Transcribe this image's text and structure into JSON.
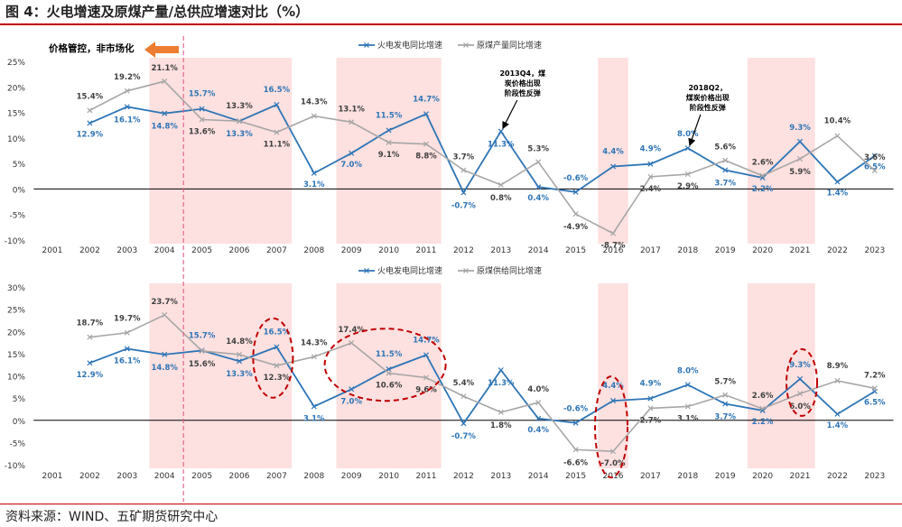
{
  "figure": {
    "title": "图 4：火电增速及原煤产量/总供应增速对比（%）",
    "source": "资料来源：WIND、五矿期货研究中心"
  },
  "colors": {
    "thermal": "#2e75b6",
    "coal": "#a6a6a6",
    "label_gray": "#404040",
    "shade": "#fde0e0",
    "arrow": "#ed7d31",
    "dash": "#e05c8c",
    "ellipse": "#c00000"
  },
  "chart_data": [
    {
      "type": "line",
      "x": [
        "2001",
        "2002",
        "2003",
        "2004",
        "2005",
        "2006",
        "2007",
        "2008",
        "2009",
        "2010",
        "2011",
        "2012",
        "2013",
        "2014",
        "2015",
        "2016",
        "2017",
        "2018",
        "2019",
        "2020",
        "2021",
        "2022",
        "2023"
      ],
      "series": [
        {
          "name": "火电发电同比增速",
          "values": [
            null,
            12.9,
            16.1,
            14.8,
            15.7,
            13.3,
            16.5,
            3.1,
            7.0,
            11.5,
            14.7,
            -0.7,
            11.3,
            0.4,
            -0.6,
            4.4,
            4.9,
            8.0,
            3.7,
            2.2,
            9.3,
            1.4,
            6.5
          ],
          "labels": [
            "",
            "12.9%",
            "16.1%",
            "14.8%",
            "15.7%",
            "13.3%",
            "16.5%",
            "3.1%",
            "7.0%",
            "11.5%",
            "14.7%",
            "-0.7%",
            "11.3%",
            "0.4%",
            "-0.6%",
            "4.4%",
            "4.9%",
            "8.0%",
            "3.7%",
            "2.2%",
            "9.3%",
            "1.4%",
            "6.5%"
          ]
        },
        {
          "name": "原煤产量同比增速",
          "values": [
            null,
            15.4,
            19.2,
            21.1,
            13.6,
            13.3,
            11.1,
            14.3,
            13.1,
            9.1,
            8.8,
            3.7,
            0.8,
            5.3,
            -4.9,
            -8.7,
            2.4,
            2.9,
            5.6,
            2.6,
            5.9,
            10.4,
            3.6
          ],
          "labels": [
            "",
            "15.4%",
            "19.2%",
            "21.1%",
            "13.6%",
            "13.3%",
            "11.1%",
            "14.3%",
            "13.1%",
            "9.1%",
            "8.8%",
            "3.7%",
            "0.8%",
            "5.3%",
            "-4.9%",
            "-8.7%",
            "2.4%",
            "2.9%",
            "5.6%",
            "2.6%",
            "5.9%",
            "10.4%",
            "3.6%"
          ]
        }
      ],
      "ylim": [
        -10,
        25
      ],
      "yticks": [
        "-10%",
        "-5%",
        "0%",
        "5%",
        "10%",
        "15%",
        "20%",
        "25%"
      ],
      "legend": "top-center",
      "shaded_years": [
        [
          "2004",
          "2007"
        ],
        [
          "2009",
          "2011"
        ],
        [
          "2016",
          "2016"
        ],
        [
          "2020",
          "2021"
        ]
      ],
      "arrow_text": "价格管控，非市场化",
      "annotations": [
        {
          "text": "2013Q4，煤炭价格出现阶段性反弹",
          "lines": [
            "2013Q4，煤",
            "炭价格出现",
            "阶段性反弹"
          ],
          "year": "2013"
        },
        {
          "text": "2018Q2，煤炭价格出现阶段性反弹",
          "lines": [
            "2018Q2，",
            "煤炭价格出现",
            "阶段性反弹"
          ],
          "year": "2018"
        }
      ]
    },
    {
      "type": "line",
      "x": [
        "2001",
        "2002",
        "2003",
        "2004",
        "2005",
        "2006",
        "2007",
        "2008",
        "2009",
        "2010",
        "2011",
        "2012",
        "2013",
        "2014",
        "2015",
        "2016",
        "2017",
        "2018",
        "2019",
        "2020",
        "2021",
        "2022",
        "2023"
      ],
      "series": [
        {
          "name": "火电发电同比增速",
          "values": [
            null,
            12.9,
            16.1,
            14.8,
            15.7,
            13.3,
            16.5,
            3.1,
            7.0,
            11.5,
            14.7,
            -0.7,
            11.3,
            0.4,
            -0.6,
            4.4,
            4.9,
            8.0,
            3.7,
            2.2,
            9.3,
            1.4,
            6.5
          ],
          "labels": [
            "",
            "12.9%",
            "16.1%",
            "14.8%",
            "15.7%",
            "13.3%",
            "16.5%",
            "3.1%",
            "7.0%",
            "11.5%",
            "14.7%",
            "-0.7%",
            "11.3%",
            "0.4%",
            "-0.6%",
            "4.4%",
            "4.9%",
            "8.0%",
            "3.7%",
            "2.2%",
            "9.3%",
            "1.4%",
            "6.5%"
          ]
        },
        {
          "name": "原煤供给同比增速",
          "values": [
            null,
            18.7,
            19.7,
            23.7,
            15.6,
            14.8,
            12.3,
            14.3,
            17.4,
            10.6,
            9.6,
            5.4,
            1.8,
            4.0,
            -6.6,
            -7.0,
            2.7,
            3.1,
            5.7,
            2.6,
            6.0,
            8.9,
            7.2
          ],
          "labels": [
            "",
            "18.7%",
            "19.7%",
            "23.7%",
            "15.6%",
            "14.8%",
            "12.3%",
            "14.3%",
            "17.4%",
            "10.6%",
            "9.6%",
            "5.4%",
            "1.8%",
            "4.0%",
            "-6.6%",
            "-7.0%",
            "2.7%",
            "3.1%",
            "5.7%",
            "2.6%",
            "6.0%",
            "8.9%",
            "7.2%"
          ]
        }
      ],
      "ylim": [
        -10,
        30
      ],
      "yticks": [
        "-10%",
        "-5%",
        "0%",
        "5%",
        "10%",
        "15%",
        "20%",
        "25%",
        "30%"
      ],
      "legend": "top-center",
      "shaded_years": [
        [
          "2004",
          "2007"
        ],
        [
          "2009",
          "2011"
        ],
        [
          "2016",
          "2016"
        ],
        [
          "2020",
          "2021"
        ]
      ],
      "circled_years": [
        [
          "2007",
          "2007"
        ],
        [
          "2009",
          "2011"
        ],
        [
          "2016",
          "2016"
        ],
        [
          "2021",
          "2021"
        ]
      ]
    }
  ]
}
